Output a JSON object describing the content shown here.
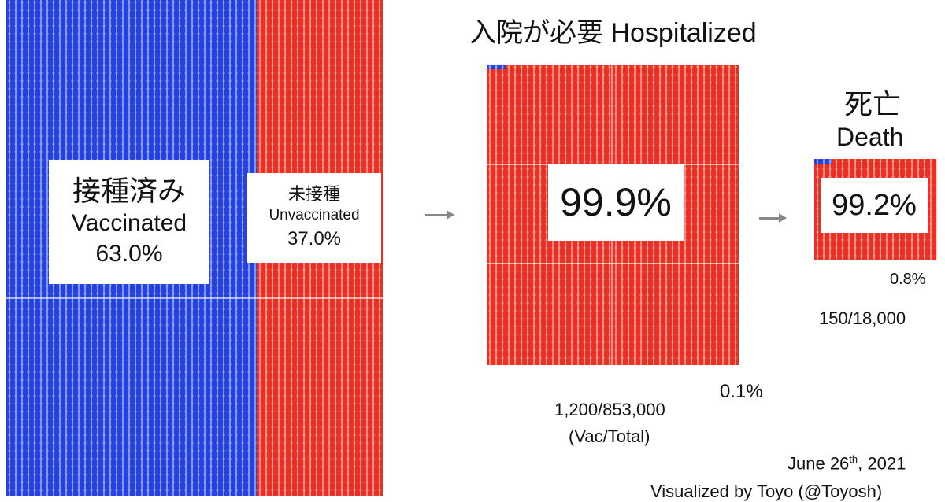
{
  "colors": {
    "vaccinated": "#2342e0",
    "unvaccinated": "#ea2f24"
  },
  "population": {
    "vaccinated_jp": "接種済み",
    "vaccinated_en": "Vaccinated",
    "vaccinated_pct": "63.0%",
    "unvaccinated_jp": "未接種",
    "unvaccinated_en": "Unvaccinated",
    "unvaccinated_pct": "37.0%"
  },
  "hospitalized": {
    "title": "入院が必要 Hospitalized",
    "main_pct": "99.9%",
    "vac_pct": "0.1%",
    "counts": "1,200/853,000",
    "counts_note": "(Vac/Total)"
  },
  "death": {
    "title_jp": "死亡",
    "title_en": "Death",
    "main_pct": "99.2%",
    "vac_pct": "0.8%",
    "counts": "150/18,000"
  },
  "footer": {
    "date_main": "June 26",
    "date_sup": "th",
    "date_year": ", 2021",
    "credit": "Visualized by Toyo (@Toyosh)"
  },
  "chart_data": [
    {
      "type": "area",
      "title": "",
      "categories": [
        "Vaccinated",
        "Unvaccinated"
      ],
      "values": [
        63.0,
        37.0
      ],
      "unit": "%"
    },
    {
      "type": "area",
      "title": "入院が必要 Hospitalized",
      "categories": [
        "Unvaccinated",
        "Vaccinated"
      ],
      "values": [
        99.9,
        0.1
      ],
      "counts": "1,200/853,000",
      "unit": "%"
    },
    {
      "type": "area",
      "title": "死亡 Death",
      "categories": [
        "Unvaccinated",
        "Vaccinated"
      ],
      "values": [
        99.2,
        0.8
      ],
      "counts": "150/18,000",
      "unit": "%"
    }
  ]
}
